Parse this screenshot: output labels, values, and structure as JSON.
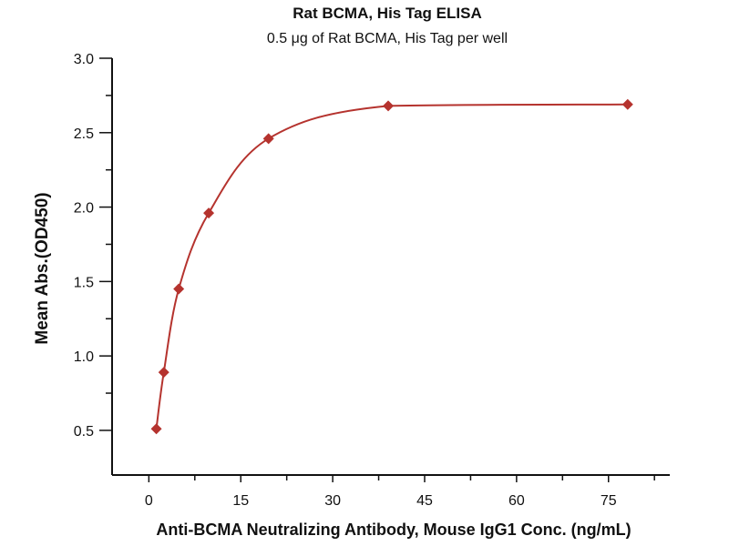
{
  "chart_data": {
    "type": "scatter",
    "title": "Rat BCMA, His Tag ELISA",
    "subtitle": "0.5 μg of Rat BCMA, His Tag per well",
    "xlabel": "Anti-BCMA Neutralizing Antibody, Mouse IgG1 Conc. (ng/mL)",
    "ylabel": "Mean Abs.(OD450)",
    "xlim": [
      -6,
      85
    ],
    "ylim": [
      0.2,
      3.0
    ],
    "xticks": [
      "0",
      "15",
      "30",
      "45",
      "60",
      "75"
    ],
    "xtick_values": [
      0,
      15,
      30,
      45,
      60,
      75
    ],
    "yticks": [
      "0.5",
      "1.0",
      "1.5",
      "2.0",
      "2.5",
      "3.0"
    ],
    "ytick_values": [
      0.5,
      1.0,
      1.5,
      2.0,
      2.5,
      3.0
    ],
    "grid": false,
    "series": [
      {
        "name": "Rat BCMA, His Tag",
        "color": "#b5332e",
        "marker": "diamond",
        "x": [
          1.22,
          2.44,
          4.88,
          9.77,
          19.53,
          39.06,
          78.13
        ],
        "y": [
          0.51,
          0.89,
          1.45,
          1.96,
          2.46,
          2.68,
          2.69
        ]
      }
    ]
  }
}
